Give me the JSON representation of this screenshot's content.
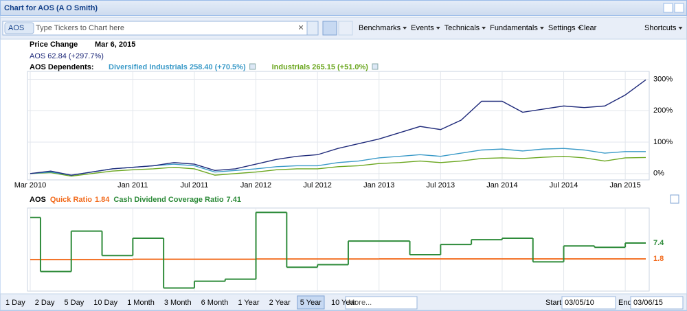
{
  "window": {
    "title": "Chart for AOS (A O Smith)"
  },
  "toolbar": {
    "ticker_chip": "AOS",
    "placeholder": "Type Tickers to Chart here",
    "menus": [
      "Benchmarks",
      "Events",
      "Technicals",
      "Fundamentals",
      "Settings"
    ],
    "clear": "Clear",
    "shortcuts": "Shortcuts"
  },
  "header": {
    "price_change": "Price Change",
    "date": "Mar 6, 2015",
    "dependents_label": "AOS Dependents:"
  },
  "chart_data": [
    {
      "type": "line",
      "xlim": [
        "2010-03",
        "2015-03"
      ],
      "ylim": [
        -20,
        325
      ],
      "xticks": [
        {
          "value": "2010-03",
          "label": "Mar 2010"
        },
        {
          "value": "2011-01",
          "label": "Jan 2011"
        },
        {
          "value": "2011-07",
          "label": "Jul 2011"
        },
        {
          "value": "2012-01",
          "label": "Jan 2012"
        },
        {
          "value": "2012-07",
          "label": "Jul 2012"
        },
        {
          "value": "2013-01",
          "label": "Jan 2013"
        },
        {
          "value": "2013-07",
          "label": "Jul 2013"
        },
        {
          "value": "2014-01",
          "label": "Jan 2014"
        },
        {
          "value": "2014-07",
          "label": "Jul 2014"
        },
        {
          "value": "2015-01",
          "label": "Jan 2015"
        }
      ],
      "yticks": [
        {
          "value": 0,
          "label": "0%"
        },
        {
          "value": 100,
          "label": "100%"
        },
        {
          "value": 200,
          "label": "200%"
        },
        {
          "value": 300,
          "label": "300%"
        }
      ],
      "grid": true,
      "x": [
        "2010-03",
        "2010-05",
        "2010-07",
        "2010-09",
        "2010-11",
        "2011-01",
        "2011-03",
        "2011-05",
        "2011-07",
        "2011-09",
        "2011-11",
        "2012-01",
        "2012-03",
        "2012-05",
        "2012-07",
        "2012-09",
        "2012-11",
        "2013-01",
        "2013-03",
        "2013-05",
        "2013-07",
        "2013-09",
        "2013-11",
        "2014-01",
        "2014-03",
        "2014-05",
        "2014-07",
        "2014-09",
        "2014-11",
        "2015-01",
        "2015-03"
      ],
      "series": [
        {
          "label": "AOS 62.84 (+297.7%)",
          "color": "#1f2a7a",
          "values": [
            0,
            8,
            -5,
            5,
            15,
            20,
            25,
            35,
            30,
            10,
            15,
            30,
            45,
            55,
            60,
            80,
            95,
            110,
            130,
            150,
            140,
            170,
            230,
            230,
            195,
            205,
            215,
            210,
            215,
            250,
            298
          ]
        },
        {
          "label": "Diversified Industrials 258.40 (+70.5%)",
          "color": "#3a9ac8",
          "values": [
            0,
            5,
            -5,
            5,
            15,
            20,
            25,
            30,
            25,
            5,
            10,
            15,
            22,
            25,
            25,
            35,
            40,
            50,
            55,
            60,
            55,
            65,
            75,
            78,
            72,
            78,
            80,
            75,
            65,
            70,
            70
          ]
        },
        {
          "label": "Industrials 265.15 (+51.0%)",
          "color": "#6aa61e",
          "values": [
            0,
            3,
            -8,
            0,
            8,
            12,
            15,
            20,
            15,
            -5,
            0,
            5,
            12,
            15,
            15,
            22,
            25,
            32,
            35,
            40,
            35,
            40,
            48,
            50,
            48,
            52,
            55,
            50,
            40,
            50,
            51
          ]
        }
      ]
    },
    {
      "type": "step",
      "title": "AOS",
      "xlim": [
        "2010-03",
        "2015-03"
      ],
      "ylim": [
        -9,
        19
      ],
      "series": [
        {
          "name": "Quick Ratio",
          "last": 1.84,
          "end_label": "1.8",
          "color": "#f26b1d",
          "x": [
            "2010-03",
            "2011-01",
            "2012-01",
            "2013-01",
            "2014-01"
          ],
          "values": [
            1.6,
            1.7,
            1.8,
            1.82,
            1.84
          ]
        },
        {
          "name": "Cash Dividend Coverage Ratio",
          "last": 7.41,
          "end_label": "7.4",
          "color": "#2e8b3a",
          "x": [
            "2010-03",
            "2010-04",
            "2010-07",
            "2010-10",
            "2011-01",
            "2011-04",
            "2011-07",
            "2011-10",
            "2012-01",
            "2012-04",
            "2012-07",
            "2012-10",
            "2013-04",
            "2013-07",
            "2013-10",
            "2014-01",
            "2014-04",
            "2014-07",
            "2014-10",
            "2015-01"
          ],
          "values": [
            16.4,
            -2.6,
            11.6,
            3.0,
            9.1,
            -8.4,
            -6.0,
            -5.3,
            18.2,
            -1.1,
            -0.2,
            8.1,
            3.3,
            6.9,
            8.6,
            9.1,
            0.8,
            6.4,
            5.9,
            7.41
          ]
        }
      ]
    }
  ],
  "footer": {
    "ranges": [
      "1 Day",
      "2 Day",
      "5 Day",
      "10 Day",
      "1 Month",
      "3 Month",
      "6 Month",
      "1 Year",
      "2 Year",
      "5 Year",
      "10 Year"
    ],
    "selected": 9,
    "more": "More...",
    "start_label": "Start",
    "start": "03/05/10",
    "end_label": "End",
    "end": "03/06/15"
  }
}
